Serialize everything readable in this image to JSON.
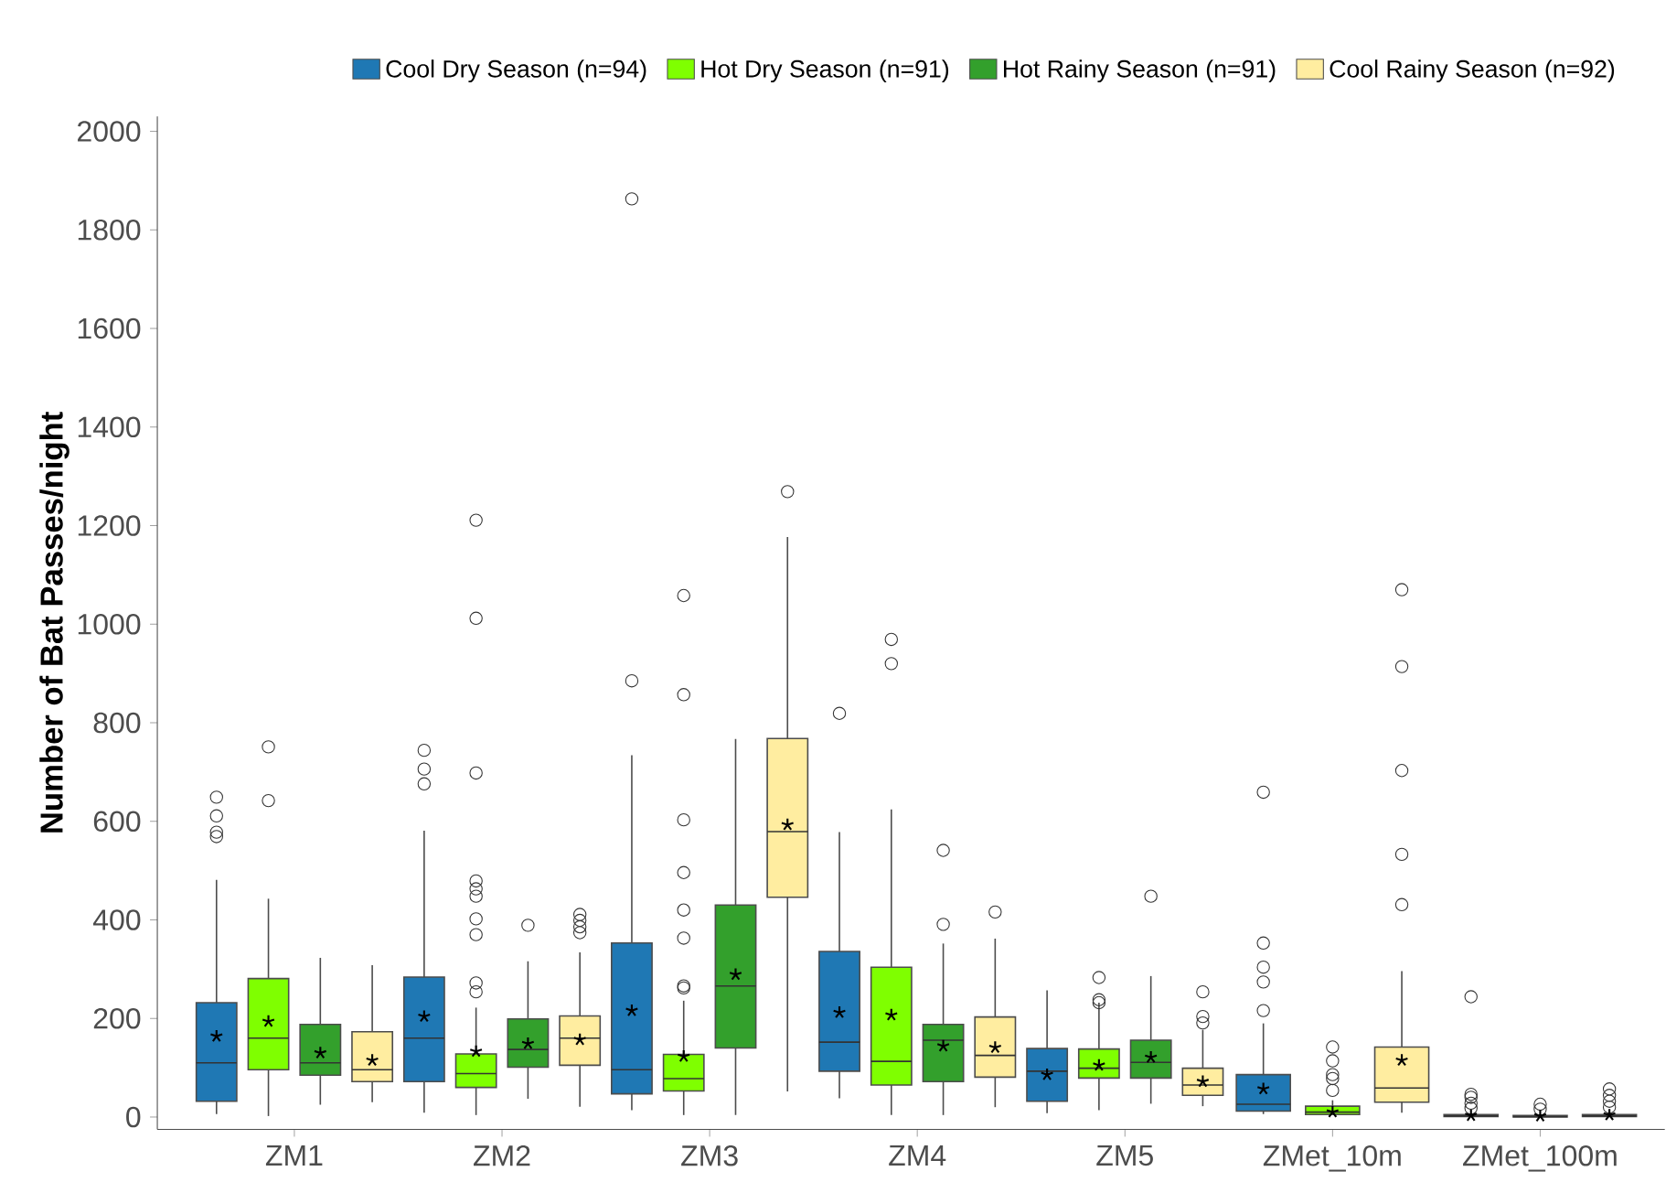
{
  "chart_data": {
    "type": "box",
    "ylabel": "Number of Bat Passes/night",
    "legend": "top",
    "categories": [
      "ZM1",
      "ZM2",
      "ZM3",
      "ZM4",
      "ZM5",
      "ZMet_10m",
      "ZMet_100m"
    ],
    "ylim": [
      -25,
      2030
    ],
    "yticks": [
      0,
      200,
      400,
      600,
      800,
      1000,
      1200,
      1400,
      1600,
      1800,
      2000
    ],
    "series": [
      {
        "name": "Cool Dry Season (n=94)",
        "color": "#1f78b4",
        "boxes": [
          {
            "low": 6,
            "q1": 32,
            "median": 110,
            "q3": 232,
            "high": 481,
            "mean": 164,
            "outliers": [
              649,
              611,
              578,
              569
            ]
          },
          {
            "low": 9,
            "q1": 72,
            "median": 160,
            "q3": 284,
            "high": 581,
            "mean": 204,
            "outliers": [
              744,
              706,
              676
            ]
          },
          {
            "low": 14,
            "q1": 47,
            "median": 96,
            "q3": 353,
            "high": 734,
            "mean": 216,
            "outliers": [
              885,
              1863
            ]
          },
          {
            "low": 38,
            "q1": 93,
            "median": 152,
            "q3": 336,
            "high": 578,
            "mean": 212,
            "outliers": [
              819
            ]
          },
          {
            "low": 8,
            "q1": 32,
            "median": 93,
            "q3": 139,
            "high": 257,
            "mean": 86
          },
          {
            "low": 6,
            "q1": 12,
            "median": 26,
            "q3": 86,
            "high": 190,
            "mean": 57,
            "outliers": [
              659,
              353,
              304,
              274,
              216
            ]
          },
          {
            "low": 0,
            "q1": 1,
            "median": 2,
            "q3": 5,
            "high": 8,
            "mean": 3,
            "outliers": [
              244,
              46,
              40,
              28,
              18
            ]
          }
        ]
      },
      {
        "name": "Hot Dry Season (n=91)",
        "color": "#7fff00",
        "boxes": [
          {
            "low": 2,
            "q1": 96,
            "median": 160,
            "q3": 281,
            "high": 443,
            "mean": 194,
            "outliers": [
              751,
              642
            ]
          },
          {
            "low": 4,
            "q1": 60,
            "median": 88,
            "q3": 128,
            "high": 222,
            "mean": 133,
            "outliers": [
              1211,
              1012,
              698,
              479,
              463,
              448,
              402,
              370,
              272,
              254
            ]
          },
          {
            "low": 4,
            "q1": 53,
            "median": 78,
            "q3": 127,
            "high": 236,
            "mean": 123,
            "outliers": [
              1058,
              857,
              603,
              496,
              420,
              363,
              266,
              262
            ]
          },
          {
            "low": 4,
            "q1": 65,
            "median": 113,
            "q3": 304,
            "high": 624,
            "mean": 207,
            "outliers": [
              969,
              920
            ]
          },
          {
            "low": 14,
            "q1": 79,
            "median": 99,
            "q3": 138,
            "high": 232,
            "mean": 105,
            "outliers": [
              283,
              238,
              232
            ]
          },
          {
            "low": 4,
            "q1": 5,
            "median": 10,
            "q3": 22,
            "high": 34,
            "mean": 10,
            "outliers": [
              142,
              114,
              86,
              78,
              54
            ]
          },
          {
            "low": 0,
            "q1": 0,
            "median": 1,
            "q3": 3,
            "high": 6,
            "mean": 2,
            "outliers": [
              26,
              16
            ]
          }
        ]
      },
      {
        "name": "Hot Rainy Season (n=91)",
        "color": "#33a02c",
        "boxes": [
          {
            "low": 25,
            "q1": 85,
            "median": 110,
            "q3": 188,
            "high": 323,
            "mean": 130
          },
          {
            "low": 37,
            "q1": 101,
            "median": 137,
            "q3": 199,
            "high": 316,
            "mean": 149,
            "outliers": [
              389
            ]
          },
          {
            "low": 4,
            "q1": 140,
            "median": 266,
            "q3": 430,
            "high": 767,
            "mean": 289
          },
          {
            "low": 4,
            "q1": 72,
            "median": 156,
            "q3": 188,
            "high": 352,
            "mean": 144,
            "outliers": [
              541,
              391
            ]
          },
          {
            "low": 27,
            "q1": 79,
            "median": 111,
            "q3": 156,
            "high": 286,
            "mean": 121,
            "outliers": [
              448
            ]
          },
          null,
          null
        ]
      },
      {
        "name": "Cool Rainy Season (n=92)",
        "color": "#ffeda0",
        "boxes": [
          {
            "low": 30,
            "q1": 72,
            "median": 96,
            "q3": 173,
            "high": 308,
            "mean": 115
          },
          {
            "low": 21,
            "q1": 105,
            "median": 160,
            "q3": 205,
            "high": 334,
            "mean": 157,
            "outliers": [
              411,
              399,
              386,
              374
            ]
          },
          {
            "low": 52,
            "q1": 446,
            "median": 579,
            "q3": 768,
            "high": 1177,
            "mean": 593,
            "outliers": [
              1269
            ]
          },
          {
            "low": 20,
            "q1": 81,
            "median": 125,
            "q3": 203,
            "high": 362,
            "mean": 141,
            "outliers": [
              416
            ]
          },
          {
            "low": 22,
            "q1": 44,
            "median": 65,
            "q3": 99,
            "high": 177,
            "mean": 72,
            "outliers": [
              254,
              204,
              191
            ]
          },
          {
            "low": 9,
            "q1": 30,
            "median": 59,
            "q3": 142,
            "high": 296,
            "mean": 115,
            "outliers": [
              1070,
              914,
              703,
              533,
              431
            ]
          },
          {
            "low": 0,
            "q1": 1,
            "median": 2,
            "q3": 5,
            "high": 10,
            "mean": 4,
            "outliers": [
              57,
              44,
              32,
              20
            ]
          }
        ]
      }
    ]
  }
}
